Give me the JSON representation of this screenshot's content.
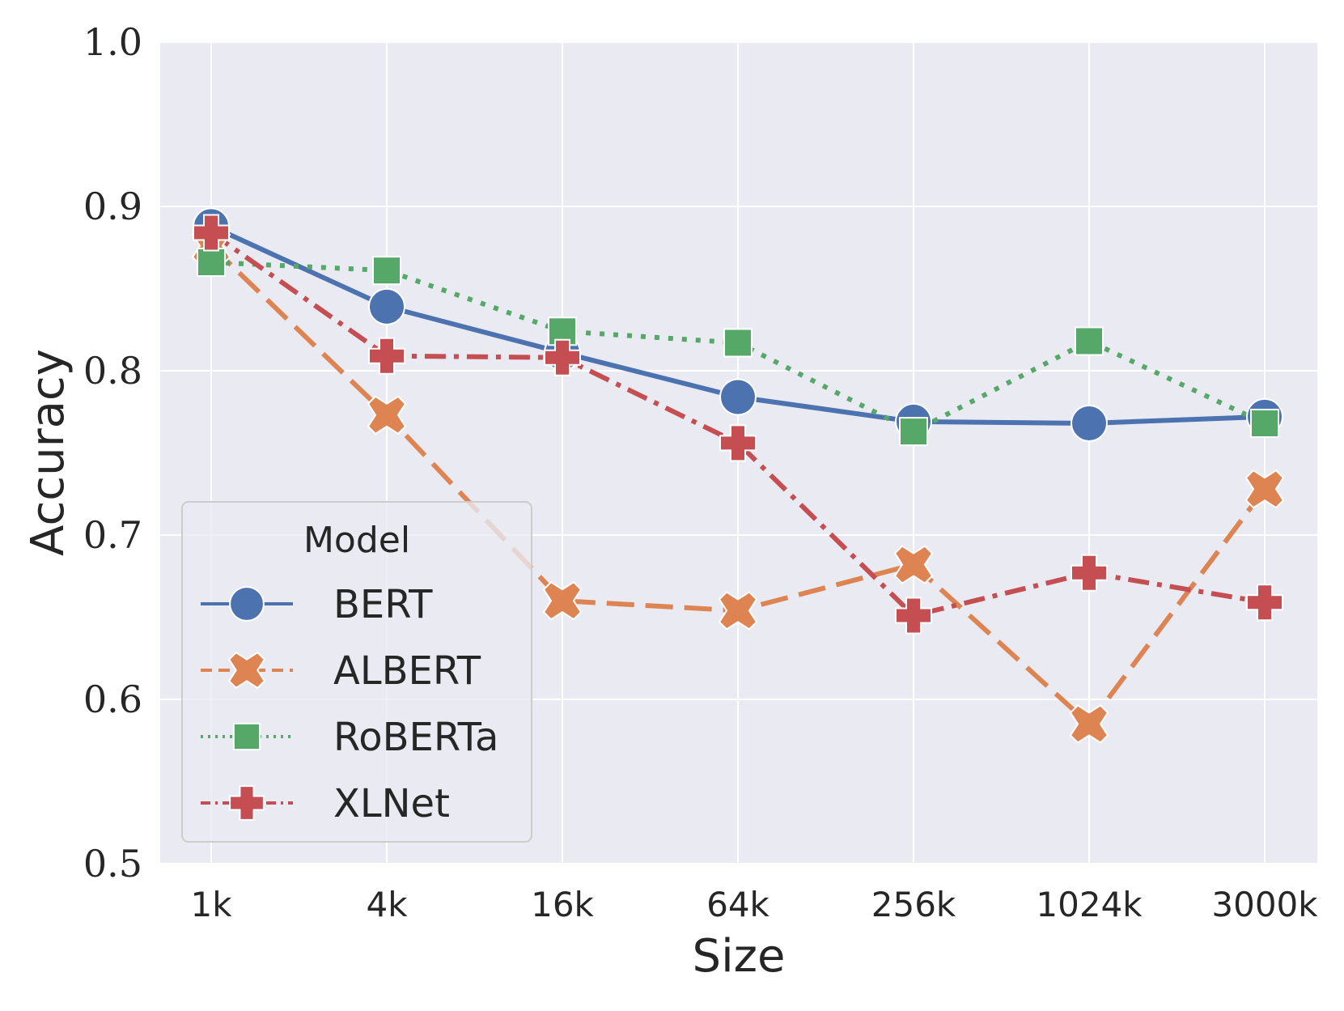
{
  "chart_data": {
    "type": "line",
    "title": "",
    "xlabel": "Size",
    "ylabel": "Accuracy",
    "categories": [
      "1k",
      "4k",
      "16k",
      "64k",
      "256k",
      "1024k",
      "3000k"
    ],
    "ylim": [
      0.5,
      1.0
    ],
    "yticks": [
      "0.5",
      "0.6",
      "0.7",
      "0.8",
      "0.9",
      "1.0"
    ],
    "grid": true,
    "legend": {
      "title": "Model",
      "placement": "lower-left"
    },
    "series": [
      {
        "name": "BERT",
        "values": [
          0.888,
          0.839,
          0.811,
          0.784,
          0.769,
          0.768,
          0.772
        ],
        "color": "#4c72b0",
        "marker": "circle",
        "linestyle": "solid"
      },
      {
        "name": "ALBERT",
        "values": [
          0.876,
          0.773,
          0.66,
          0.654,
          0.682,
          0.585,
          0.728
        ],
        "color": "#dd8452",
        "marker": "x",
        "linestyle": "dashed"
      },
      {
        "name": "RoBERTa",
        "values": [
          0.866,
          0.861,
          0.824,
          0.817,
          0.763,
          0.818,
          0.768
        ],
        "color": "#55a868",
        "marker": "square",
        "linestyle": "dotted"
      },
      {
        "name": "XLNet",
        "values": [
          0.884,
          0.809,
          0.808,
          0.756,
          0.651,
          0.677,
          0.659
        ],
        "color": "#c44e52",
        "marker": "plus",
        "linestyle": "dashdot"
      }
    ]
  }
}
